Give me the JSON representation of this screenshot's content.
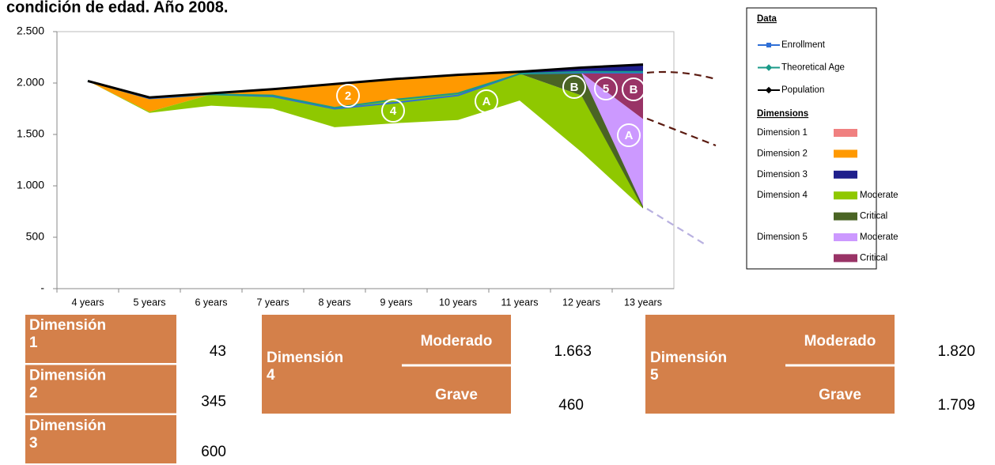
{
  "chart_data": {
    "type": "line",
    "title": "condición de edad. Año 2008.",
    "categories": [
      "4 years",
      "5 years",
      "6 years",
      "7 years",
      "8 years",
      "9 years",
      "10 years",
      "11 years",
      "12 years",
      "13 years"
    ],
    "ylim": [
      0,
      2500
    ],
    "yticks": [
      {
        "value": 0,
        "label": "-"
      },
      500,
      {
        "value": 1000,
        "label": "1.000"
      },
      {
        "value": 1500,
        "label": "1.500"
      },
      {
        "value": 2000,
        "label": "2.000"
      },
      {
        "value": 2500,
        "label": "2.500"
      }
    ],
    "grid": false,
    "series": [
      {
        "name": "Enrollment",
        "color": "#2f6fd6",
        "values": [
          2020,
          1850,
          1890,
          1870,
          1750,
          1810,
          1880,
          2090,
          2100,
          2100
        ]
      },
      {
        "name": "Theoretical Age",
        "color": "#1a9a88",
        "values": [
          2020,
          1860,
          1890,
          1880,
          1760,
          1840,
          1900,
          2090,
          2110,
          2110
        ]
      },
      {
        "name": "Population",
        "color": "#000000",
        "values": [
          2020,
          1860,
          1900,
          1940,
          1990,
          2040,
          2080,
          2110,
          2150,
          2180
        ]
      }
    ],
    "legend_title": "Data",
    "dimensions_title": "Dimensions",
    "dimensions": [
      {
        "name": "Dimension 1",
        "areas": [
          {
            "color": "#f08080"
          }
        ]
      },
      {
        "name": "Dimension 2",
        "areas": [
          {
            "color": "#ff9900",
            "top": [
              2020,
              1860,
              1900,
              1940,
              1990,
              2040,
              2080,
              2110,
              null,
              null
            ],
            "bottom": [
              2020,
              1720,
              1890,
              1880,
              1760,
              1840,
              1900,
              2090,
              null,
              null
            ]
          }
        ]
      },
      {
        "name": "Dimension 3",
        "areas": [
          {
            "color": "#1f1f8c",
            "top": [
              null,
              null,
              null,
              null,
              null,
              null,
              null,
              2110,
              2150,
              2180
            ],
            "bottom": [
              null,
              null,
              null,
              null,
              null,
              null,
              null,
              2090,
              2100,
              2110
            ]
          }
        ]
      },
      {
        "name": "Dimension 4",
        "areas": [
          {
            "name": "Moderate",
            "color": "#8fc800",
            "top": [
              2020,
              1720,
              1890,
              1880,
              1760,
              1840,
              1900,
              2090,
              1880,
              800
            ],
            "bottom": [
              2020,
              1710,
              1780,
              1750,
              1570,
              1610,
              1640,
              1830,
              1330,
              780
            ]
          },
          {
            "name": "Critical",
            "color": "#4a6424",
            "top": [
              null,
              null,
              null,
              null,
              null,
              null,
              null,
              2090,
              2100,
              820
            ],
            "bottom": [
              null,
              null,
              null,
              null,
              null,
              null,
              null,
              2090,
              1880,
              780
            ]
          }
        ]
      },
      {
        "name": "Dimension 5",
        "areas": [
          {
            "name": "Moderate",
            "color": "#cc99ff",
            "top": [
              null,
              null,
              null,
              null,
              null,
              null,
              null,
              null,
              2100,
              1650
            ],
            "bottom": [
              null,
              null,
              null,
              null,
              null,
              null,
              null,
              null,
              2100,
              800
            ]
          },
          {
            "name": "Critical",
            "color": "#993366",
            "top": [
              null,
              null,
              null,
              null,
              null,
              null,
              null,
              null,
              2100,
              2110
            ],
            "bottom": [
              null,
              null,
              null,
              null,
              null,
              null,
              null,
              null,
              2100,
              1650
            ]
          }
        ]
      }
    ],
    "annotations": [
      "2",
      "4",
      "A",
      "B",
      "5",
      "B",
      "A"
    ]
  },
  "tables": {
    "simple": [
      {
        "label": "Dimensión 1",
        "value": "43"
      },
      {
        "label": "Dimensión 2",
        "value": "345"
      },
      {
        "label": "Dimensión 3",
        "value": "600"
      }
    ],
    "dimension_4": {
      "label": "Dimensión 4",
      "rows": [
        {
          "label": "Moderado",
          "value": "1.663"
        },
        {
          "label": "Grave",
          "value": "460"
        }
      ]
    },
    "dimension_5": {
      "label": "Dimensión 5",
      "rows": [
        {
          "label": "Moderado",
          "value": "1.820"
        },
        {
          "label": "Grave",
          "value": "1.709"
        }
      ]
    }
  }
}
